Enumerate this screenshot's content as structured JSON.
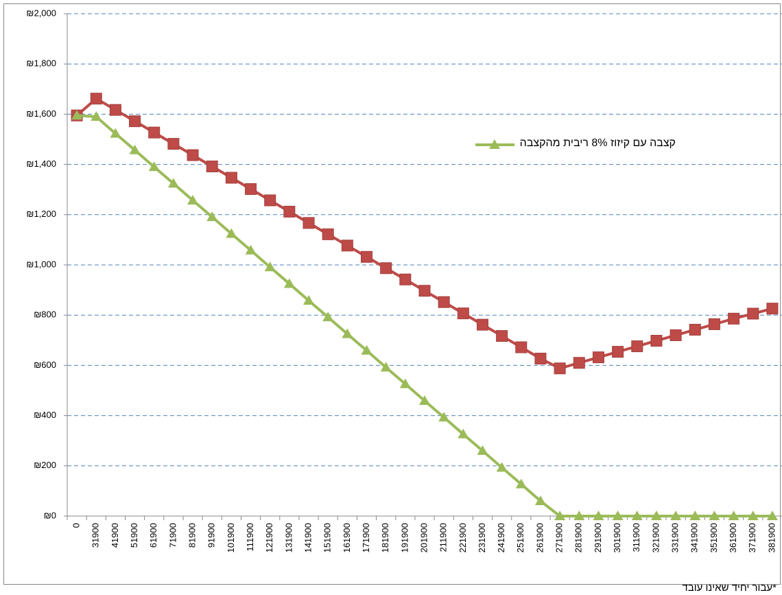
{
  "chart_data": {
    "type": "line",
    "note": "*עבור יחיד שאינו עובד",
    "categories": [
      "0",
      "31900",
      "41900",
      "51900",
      "61900",
      "71900",
      "81900",
      "91900",
      "101900",
      "111900",
      "121900",
      "131900",
      "141900",
      "151900",
      "161900",
      "171900",
      "181900",
      "191900",
      "201900",
      "211900",
      "221900",
      "231900",
      "241900",
      "251900",
      "261900",
      "271900",
      "281900",
      "291900",
      "301900",
      "311900",
      "321900",
      "331900",
      "341900",
      "351900",
      "361900",
      "371900",
      "381900"
    ],
    "series": [
      {
        "color": "#be4b48",
        "marker": "square",
        "values": [
          1595,
          1662,
          1617,
          1572,
          1527,
          1482,
          1437,
          1392,
          1347,
          1302,
          1257,
          1212,
          1167,
          1122,
          1077,
          1032,
          987,
          942,
          897,
          852,
          807,
          762,
          717,
          672,
          627,
          588,
          610,
          632,
          654,
          676,
          698,
          720,
          742,
          764,
          786,
          806,
          826
        ]
      },
      {
        "name": "קצבה עם קיזוז 8% ריבית מהקצבה",
        "color": "#9bbb59",
        "marker": "triangle",
        "values": [
          1595,
          1590,
          1523,
          1457,
          1390,
          1324,
          1257,
          1191,
          1124,
          1058,
          991,
          925,
          858,
          792,
          725,
          659,
          592,
          526,
          459,
          393,
          326,
          260,
          193,
          127,
          60,
          0,
          0,
          0,
          0,
          0,
          0,
          0,
          0,
          0,
          0,
          0,
          0
        ]
      }
    ],
    "ylim": [
      0,
      2000
    ],
    "yticks": [
      {
        "value": 0,
        "label": "₪0"
      },
      {
        "value": 200,
        "label": "₪200"
      },
      {
        "value": 400,
        "label": "₪400"
      },
      {
        "value": 600,
        "label": "₪600"
      },
      {
        "value": 800,
        "label": "₪800"
      },
      {
        "value": 1000,
        "label": "₪1,000"
      },
      {
        "value": 1200,
        "label": "₪1,200"
      },
      {
        "value": 1400,
        "label": "₪1,400"
      },
      {
        "value": 1600,
        "label": "₪1,600"
      },
      {
        "value": 1800,
        "label": "₪1,800"
      },
      {
        "value": 2000,
        "label": "₪2,000"
      }
    ],
    "grid": true
  }
}
